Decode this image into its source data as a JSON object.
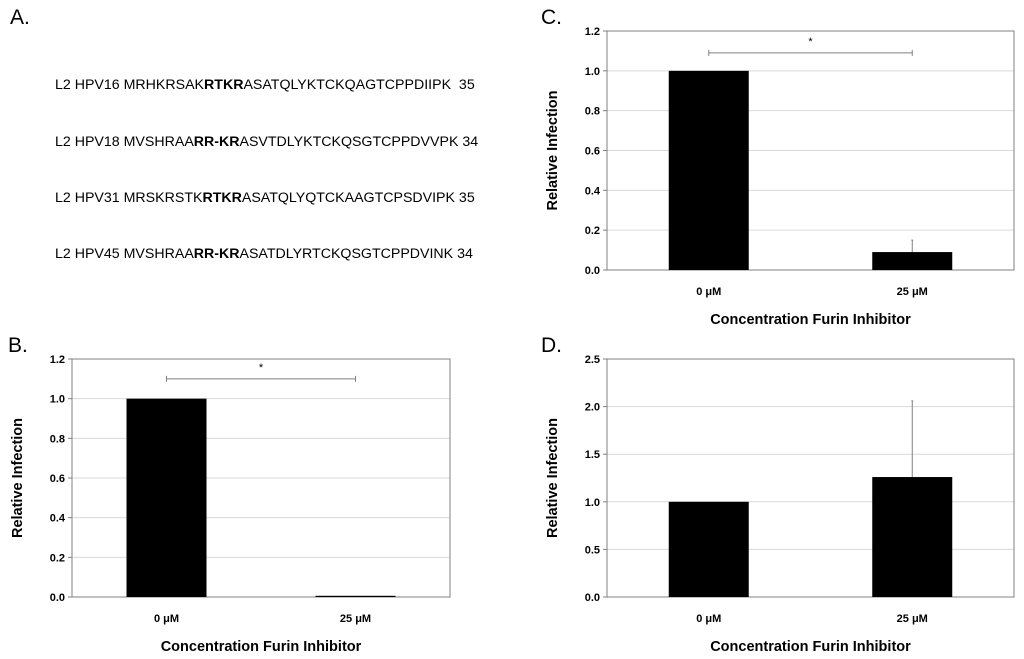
{
  "panels": {
    "a": {
      "letter": "A."
    },
    "b": {
      "letter": "B."
    },
    "c": {
      "letter": "C."
    },
    "d": {
      "letter": "D."
    }
  },
  "sequences": [
    {
      "prefix": "L2 HPV16 MRHKRSAK",
      "bold": "RTKR",
      "suffix": "ASATQLYKTCKQAGTCPPDIIPK  35"
    },
    {
      "prefix": "L2 HPV18 MVSHRAA",
      "bold": "RR-KR",
      "suffix": "ASVTDLYKTCKQSGTCPPDVVPK 34"
    },
    {
      "prefix": "L2 HPV31 MRSKRSTK",
      "bold": "RTKR",
      "suffix": "ASATQLYQTCKAAGTCPSDVIPK 35"
    },
    {
      "prefix": "L2 HPV45 MVSHRAA",
      "bold": "RR-KR",
      "suffix": "ASATDLYRTCKQSGTCPPDVINK 34"
    }
  ],
  "chart_data": [
    {
      "id": "C",
      "type": "bar",
      "categories": [
        "0 μM",
        "25 μM"
      ],
      "values": [
        1.0,
        0.09
      ],
      "error": [
        0.0,
        0.06
      ],
      "ylim": [
        0,
        1.2
      ],
      "yticks": [
        0,
        0.2,
        0.4,
        0.6,
        0.8,
        1.0,
        1.2
      ],
      "ytick_labels": [
        "0.0",
        "0.2",
        "0.4",
        "0.6",
        "0.8",
        "1.0",
        "1.2"
      ],
      "xlabel": "Concentration Furin Inhibitor",
      "ylabel": "Relative Infection",
      "grid": true,
      "significance": {
        "from": 0,
        "to": 1,
        "y": 1.09,
        "label": "*"
      }
    },
    {
      "id": "B",
      "type": "bar",
      "categories": [
        "0 μM",
        "25 μM"
      ],
      "values": [
        1.0,
        0.005
      ],
      "error": [
        0.0,
        0.0
      ],
      "ylim": [
        0,
        1.2
      ],
      "yticks": [
        0,
        0.2,
        0.4,
        0.6,
        0.8,
        1.0,
        1.2
      ],
      "ytick_labels": [
        "0.0",
        "0.2",
        "0.4",
        "0.6",
        "0.8",
        "1.0",
        "1.2"
      ],
      "xlabel": "Concentration Furin Inhibitor",
      "ylabel": "Relative Infection",
      "grid": true,
      "significance": {
        "from": 0,
        "to": 1,
        "y": 1.1,
        "label": "*"
      }
    },
    {
      "id": "D",
      "type": "bar",
      "categories": [
        "0 μM",
        "25 μM"
      ],
      "values": [
        1.0,
        1.26
      ],
      "error": [
        0.0,
        0.8
      ],
      "ylim": [
        0,
        2.5
      ],
      "yticks": [
        0,
        0.5,
        1.0,
        1.5,
        2.0,
        2.5
      ],
      "ytick_labels": [
        "0.0",
        "0.5",
        "1.0",
        "1.5",
        "2.0",
        "2.5"
      ],
      "xlabel": "Concentration Furin Inhibitor",
      "ylabel": "Relative Infection",
      "grid": true,
      "significance": null
    }
  ],
  "colors": {
    "bar": "#000000",
    "grid": "#d9d9d9",
    "axis": "#808080",
    "error": "#808080"
  }
}
